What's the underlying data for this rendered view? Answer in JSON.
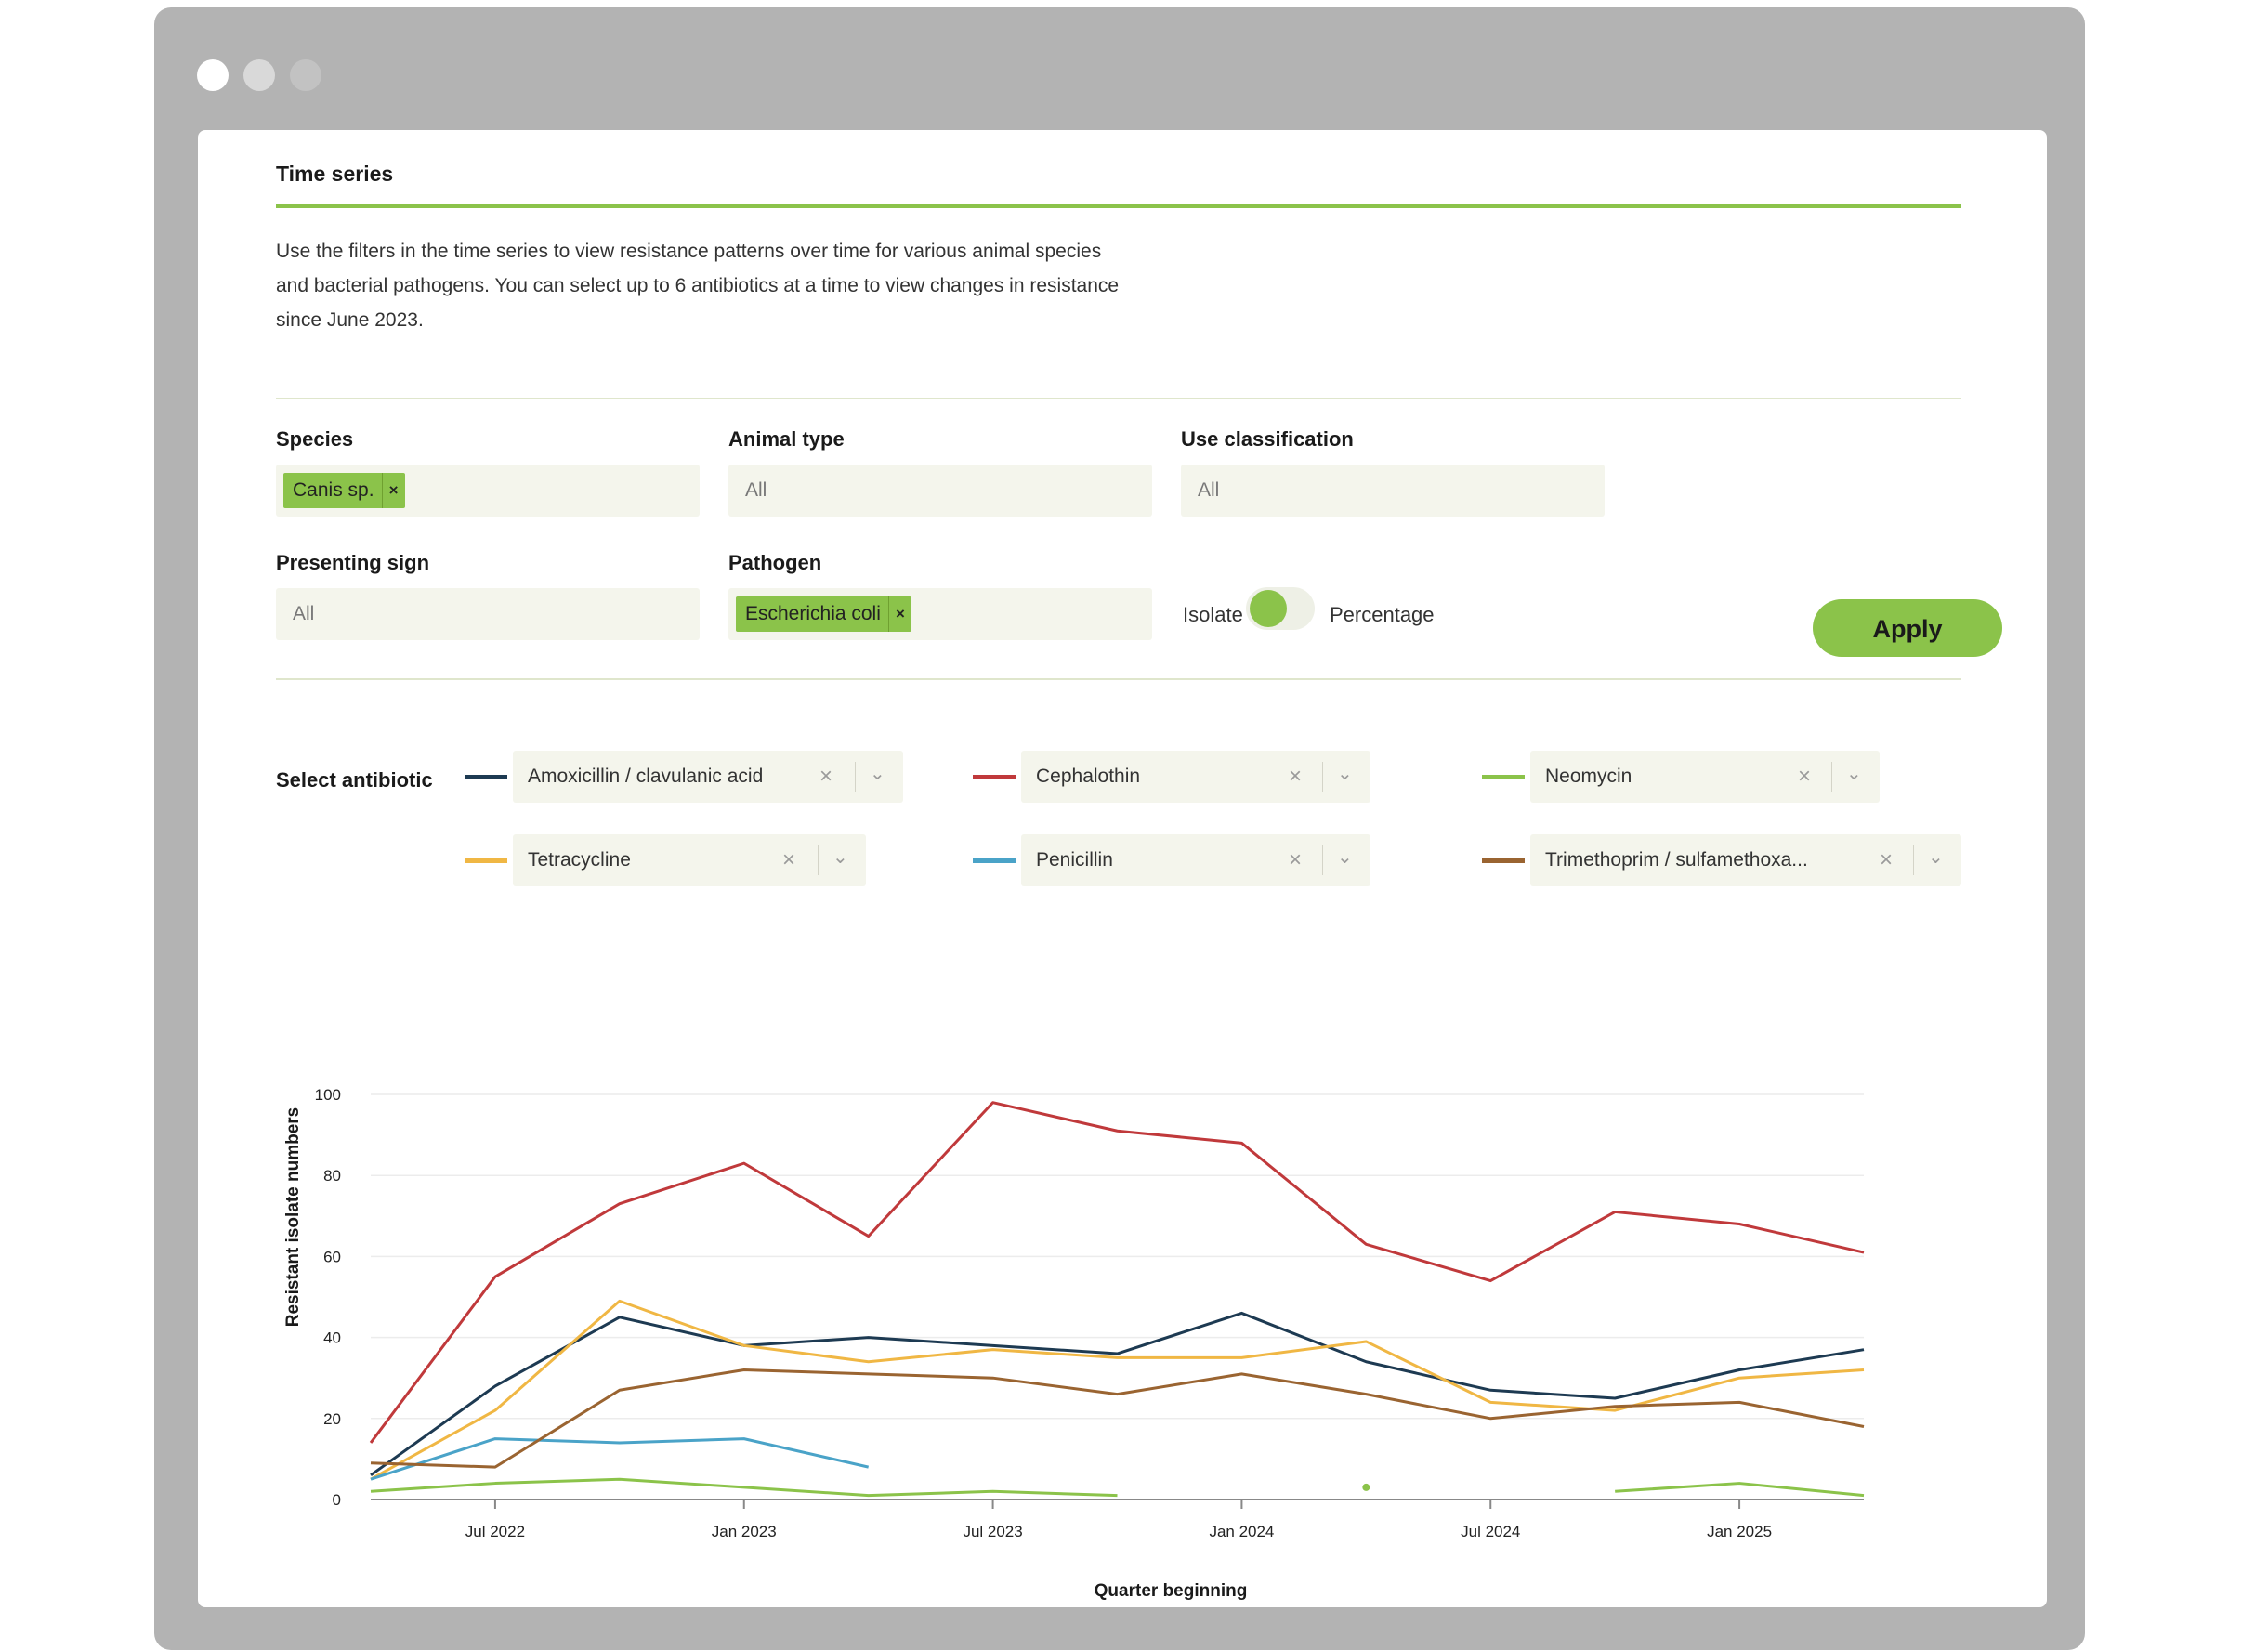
{
  "window": {
    "dots": [
      "#ffffff",
      "#d9d9d9",
      "#c2c2c2"
    ]
  },
  "section": {
    "title": "Time series",
    "intro": "Use the filters in the time series to view resistance patterns over time for various animal species and bacterial pathogens. You can select up to 6 antibiotics at a time to view changes in resistance since June 2023."
  },
  "filters": {
    "species": {
      "label": "Species",
      "chip": "Canis sp."
    },
    "animal_type": {
      "label": "Animal type",
      "placeholder": "All"
    },
    "use_classification": {
      "label": "Use classification",
      "placeholder": "All"
    },
    "presenting_sign": {
      "label": "Presenting sign",
      "placeholder": "All"
    },
    "pathogen": {
      "label": "Pathogen",
      "chip": "Escherichia coli"
    },
    "toggle": {
      "left": "Isolate",
      "right": "Percentage"
    },
    "chip_remove": "×",
    "apply": "Apply"
  },
  "antibiotics": {
    "label": "Select antibiotic",
    "clear_glyph": "×",
    "chevron_glyph": "⌄",
    "items": [
      {
        "name": "Amoxicillin / clavulanic acid",
        "color": "#1d3a52"
      },
      {
        "name": "Cephalothin",
        "color": "#c0393b"
      },
      {
        "name": "Neomycin",
        "color": "#8bc34a"
      },
      {
        "name": "Tetracycline",
        "color": "#f0b744"
      },
      {
        "name": "Penicillin",
        "color": "#4aa3c8"
      },
      {
        "name": "Trimethoprim / sulfamethoxa...",
        "color": "#9a6431"
      }
    ]
  },
  "chart_data": {
    "type": "line",
    "xlabel": "Quarter beginning",
    "ylabel": "Resistant isolate numbers",
    "ylim": [
      0,
      100
    ],
    "yticks": [
      0,
      20,
      40,
      60,
      80,
      100
    ],
    "grid": "horizontal",
    "x": [
      "Apr 2022",
      "Jul 2022",
      "Oct 2022",
      "Jan 2023",
      "Apr 2023",
      "Jul 2023",
      "Oct 2023",
      "Jan 2024",
      "Apr 2024",
      "Jul 2024",
      "Oct 2024",
      "Jan 2025",
      "Apr 2025"
    ],
    "xtick_labels": [
      {
        "label": "Jul 2022",
        "index": 1
      },
      {
        "label": "Jan 2023",
        "index": 3
      },
      {
        "label": "Jul 2023",
        "index": 5
      },
      {
        "label": "Jan 2024",
        "index": 7
      },
      {
        "label": "Jul 2024",
        "index": 9
      },
      {
        "label": "Jan 2025",
        "index": 11
      }
    ],
    "series": [
      {
        "name": "Amoxicillin / clavulanic acid",
        "color": "#1d3a52",
        "values": [
          6,
          28,
          45,
          38,
          40,
          38,
          36,
          46,
          34,
          27,
          25,
          32,
          37
        ]
      },
      {
        "name": "Cephalothin",
        "color": "#c0393b",
        "values": [
          14,
          55,
          73,
          83,
          65,
          98,
          91,
          88,
          63,
          54,
          71,
          68,
          61
        ]
      },
      {
        "name": "Neomycin",
        "color": "#8bc34a",
        "values": [
          2,
          4,
          5,
          3,
          1,
          2,
          1,
          null,
          3,
          null,
          2,
          4,
          1
        ]
      },
      {
        "name": "Tetracycline",
        "color": "#f0b744",
        "values": [
          5,
          22,
          49,
          38,
          34,
          37,
          35,
          35,
          39,
          24,
          22,
          30,
          32
        ]
      },
      {
        "name": "Penicillin",
        "color": "#4aa3c8",
        "values": [
          5,
          15,
          14,
          15,
          8,
          null,
          null,
          null,
          null,
          null,
          null,
          null,
          null
        ]
      },
      {
        "name": "Trimethoprim / sulfamethoxa...",
        "color": "#9a6431",
        "values": [
          9,
          8,
          27,
          32,
          31,
          30,
          26,
          31,
          26,
          20,
          23,
          24,
          18
        ]
      }
    ]
  }
}
